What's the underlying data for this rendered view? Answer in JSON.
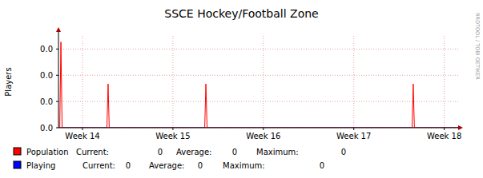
{
  "chart_data": {
    "type": "line",
    "title": "SSCE Hockey/Football Zone",
    "y_label": "Players",
    "credit": "RRDTOOL / TOBI OETIKER",
    "stat_labels": [
      "Current:",
      "Average:",
      "Maximum:"
    ],
    "x": [
      0,
      0.1,
      0.19,
      0.28,
      3.75,
      3.84,
      3.93,
      11.32,
      11.41,
      11.5,
      27.37,
      27.46,
      27.55,
      31
    ],
    "series": [
      {
        "name": "Population",
        "color": "#ff0000",
        "values": [
          0,
          0,
          0.0327,
          0,
          0,
          0.0167,
          0,
          0,
          0.0167,
          0,
          0,
          0.0167,
          0,
          0
        ],
        "current": 0,
        "average": 0,
        "maximum": 0
      },
      {
        "name": "Playing",
        "color": "#0000ff",
        "values": [
          0,
          0,
          0,
          0,
          0,
          0,
          0,
          0,
          0,
          0,
          0,
          0,
          0,
          0
        ],
        "current": 0,
        "average": 0,
        "maximum": 0
      }
    ],
    "xlim": [
      0,
      31
    ],
    "xticks": [
      {
        "value": 1.86,
        "label": "Week 14"
      },
      {
        "value": 8.86,
        "label": "Week 15"
      },
      {
        "value": 15.86,
        "label": "Week 16"
      },
      {
        "value": 22.86,
        "label": "Week 17"
      },
      {
        "value": 29.86,
        "label": "Week 18"
      }
    ],
    "ylim": [
      0,
      0.035
    ],
    "yticks": [
      {
        "value": 0,
        "label": "0.0"
      },
      {
        "value": 0.01,
        "label": "0.0"
      },
      {
        "value": 0.02,
        "label": "0.0"
      },
      {
        "value": 0.03,
        "label": "0.0"
      }
    ],
    "grid": true
  }
}
